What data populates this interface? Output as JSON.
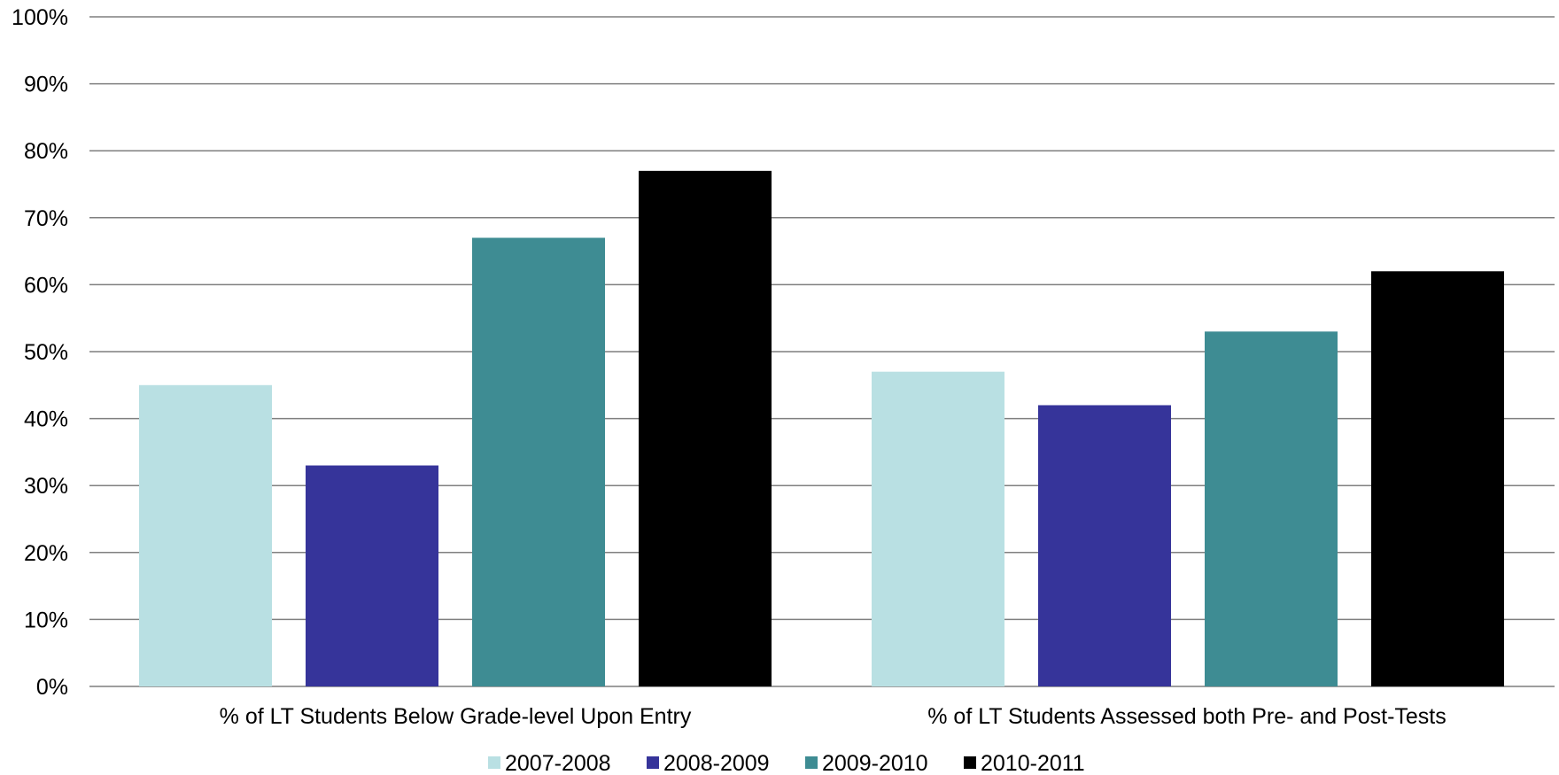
{
  "chart_data": {
    "type": "bar",
    "title": "",
    "xlabel": "",
    "ylabel": "",
    "ylim": [
      0,
      100
    ],
    "y_tick_suffix": "%",
    "y_ticks": [
      0,
      10,
      20,
      30,
      40,
      50,
      60,
      70,
      80,
      90,
      100
    ],
    "y_tick_labels": [
      "0%",
      "10%",
      "20%",
      "30%",
      "40%",
      "50%",
      "60%",
      "70%",
      "80%",
      "90%",
      "100%"
    ],
    "grid": true,
    "legend_position": "bottom",
    "categories": [
      "% of LT Students Below Grade-level Upon Entry",
      "% of LT Students Assessed both Pre- and Post-Tests"
    ],
    "series": [
      {
        "name": "2007-2008",
        "color": "#b9e0e3",
        "values": [
          45,
          47
        ]
      },
      {
        "name": "2008-2009",
        "color": "#36349a",
        "values": [
          33,
          42
        ]
      },
      {
        "name": "2009-2010",
        "color": "#3e8c93",
        "values": [
          67,
          53
        ]
      },
      {
        "name": "2010-2011",
        "color": "#000000",
        "values": [
          77,
          62
        ]
      }
    ],
    "gridline_color": "#7f7f7f"
  }
}
